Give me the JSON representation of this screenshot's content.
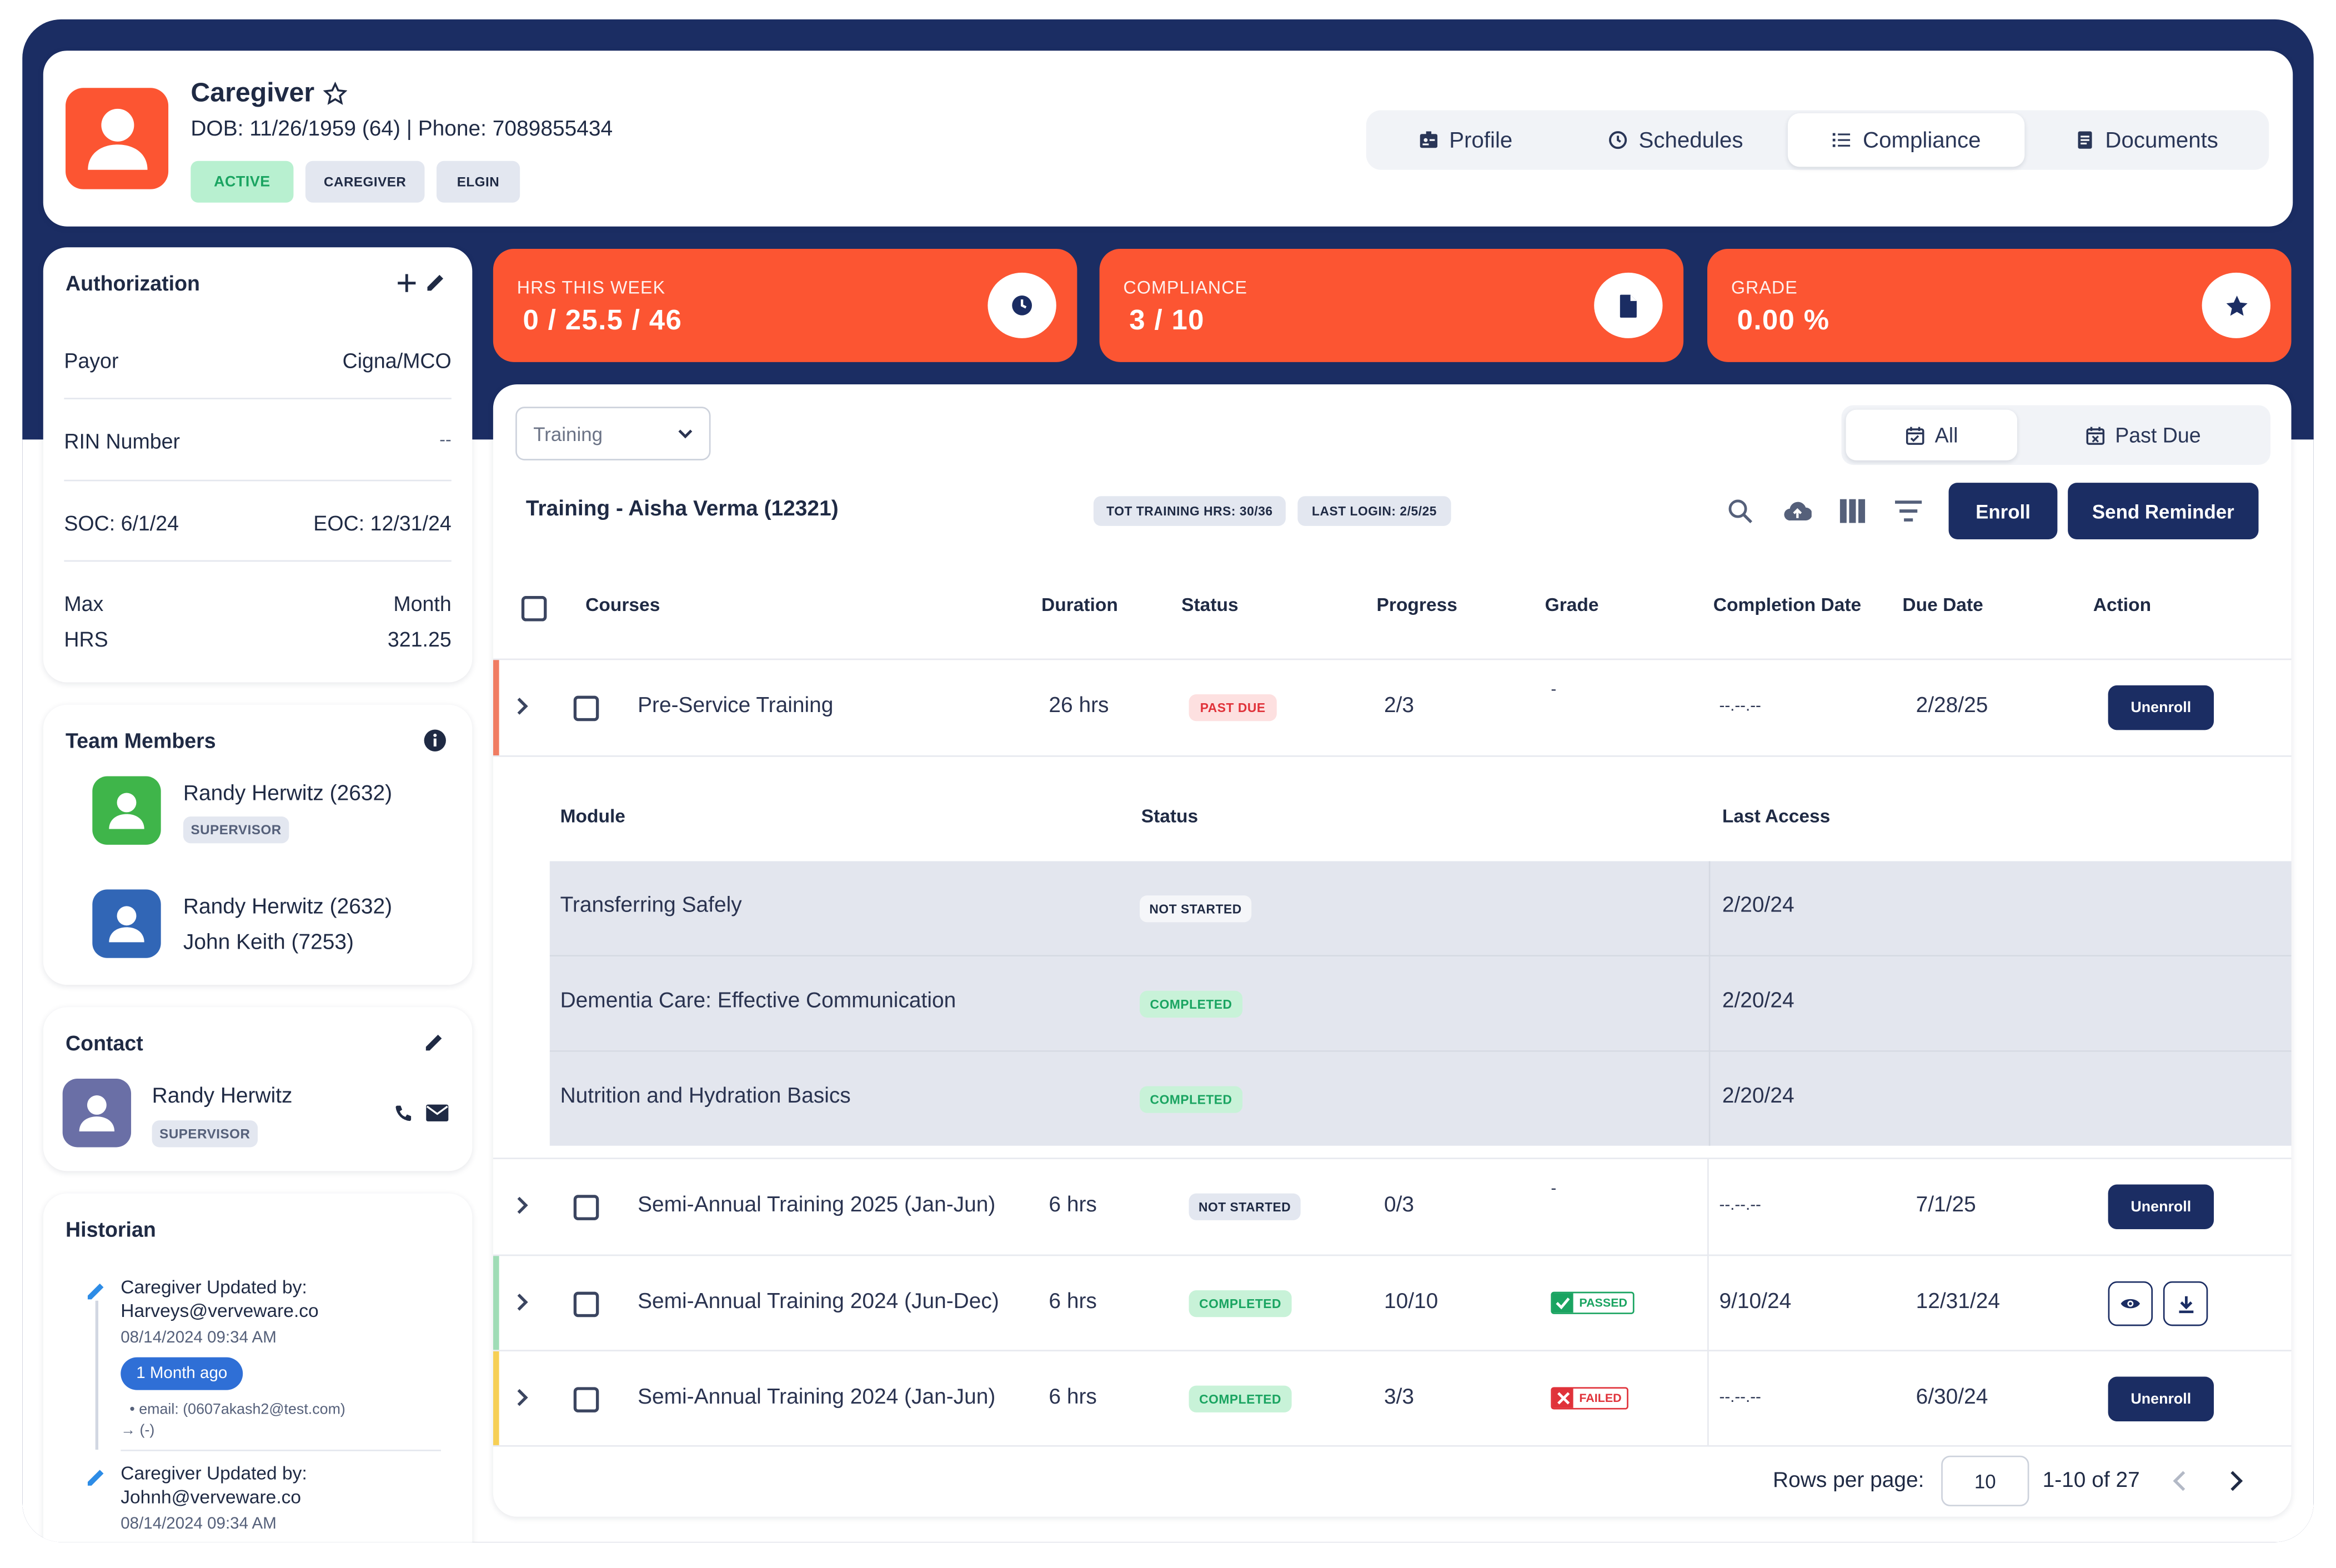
{
  "profile": {
    "name": "Caregiver",
    "info": "DOB: 11/26/1959 (64) | Phone: 7089855434",
    "badges": [
      "ACTIVE",
      "CAREGIVER",
      "ELGIN"
    ]
  },
  "tabs": [
    {
      "label": "Profile",
      "icon": "id-card-icon",
      "selected": false
    },
    {
      "label": "Schedules",
      "icon": "clock-icon",
      "selected": false
    },
    {
      "label": "Compliance",
      "icon": "list-icon",
      "selected": true
    },
    {
      "label": "Documents",
      "icon": "document-icon",
      "selected": false
    }
  ],
  "stats": [
    {
      "label": "HRS THIS WEEK",
      "value": "0 / 25.5 / 46",
      "icon": "clock-icon"
    },
    {
      "label": "COMPLIANCE",
      "value": "3 / 10",
      "icon": "file-icon"
    },
    {
      "label": "GRADE",
      "value": "0.00 %",
      "icon": "star-icon"
    }
  ],
  "authorization": {
    "title": "Authorization",
    "payor_label": "Payor",
    "payor_value": "Cigna/MCO",
    "rin_label": "RIN Number",
    "rin_value": "--",
    "soc": "SOC: 6/1/24",
    "eoc": "EOC: 12/31/24",
    "max_label_1": "Max",
    "max_label_2": "HRS",
    "month_label": "Month",
    "month_value": "321.25"
  },
  "team": {
    "title": "Team Members",
    "members": [
      {
        "name": "Randy Herwitz (2632)",
        "role": "SUPERVISOR",
        "color": "#3fb54a"
      },
      {
        "name": "Randy Herwitz (2632)",
        "second": "John Keith (7253)",
        "color": "#3166b6"
      }
    ]
  },
  "contact": {
    "title": "Contact",
    "name": "Randy Herwitz",
    "role": "SUPERVISOR",
    "color": "#6a6fa6"
  },
  "historian": {
    "title": "Historian",
    "items": [
      {
        "line1": "Caregiver Updated by:",
        "line2": "Harveys@verveware.co",
        "time": "08/14/2024 09:34 AM",
        "ago": "1 Month ago",
        "detail1": "email: (0607akash2@test.com)",
        "detail2": "→ (-)"
      },
      {
        "line1": "Caregiver Updated by:",
        "line2": "Johnh@verveware.co",
        "time": "08/14/2024 09:34 AM"
      }
    ]
  },
  "training": {
    "filter_value": "Training",
    "title": "Training - Aisha Verma (12321)",
    "chip_hours": "TOT TRAINING HRS: 30/36",
    "chip_login": "LAST LOGIN: 2/5/25",
    "seg_all": "All",
    "seg_past_due": "Past Due",
    "enroll": "Enroll",
    "send_reminder": "Send Reminder",
    "columns": [
      "Courses",
      "Duration",
      "Status",
      "Progress",
      "Grade",
      "Completion Date",
      "Due Date",
      "Action"
    ],
    "rows": [
      {
        "course": "Pre-Service Training",
        "duration": "26 hrs",
        "status": "PAST DUE",
        "progress": "2/3",
        "grade": "-",
        "completion": "--.--.--",
        "due": "2/28/25",
        "action": "Unenroll"
      },
      {
        "course": "Semi-Annual Training 2025 (Jan-Jun)",
        "duration": "6 hrs",
        "status": "NOT STARTED",
        "progress": "0/3",
        "grade": "-",
        "completion": "--.--.--",
        "due": "7/1/25",
        "action": "Unenroll"
      },
      {
        "course": "Semi-Annual Training 2024 (Jun-Dec)",
        "duration": "6 hrs",
        "status": "COMPLETED",
        "progress": "10/10",
        "grade": "PASSED",
        "completion": "9/10/24",
        "due": "12/31/24"
      },
      {
        "course": "Semi-Annual Training 2024 (Jan-Jun)",
        "duration": "6 hrs",
        "status": "COMPLETED",
        "progress": "3/3",
        "grade": "FAILED",
        "completion": "--.--.--",
        "due": "6/30/24",
        "action": "Unenroll"
      }
    ],
    "module_columns": [
      "Module",
      "Status",
      "Last Access"
    ],
    "modules": [
      {
        "name": "Transferring Safely",
        "status": "NOT STARTED",
        "last": "2/20/24"
      },
      {
        "name": "Dementia Care: Effective Communication",
        "status": "COMPLETED",
        "last": "2/20/24"
      },
      {
        "name": "Nutrition and Hydration Basics",
        "status": "COMPLETED",
        "last": "2/20/24"
      }
    ],
    "pagination": {
      "rows_label": "Rows per page:",
      "rows_value": "10",
      "range": "1-10 of 27"
    }
  },
  "colors": {
    "navy": "#1b2d63",
    "accent": "#fc5532",
    "success": "#1aa461",
    "danger": "#e0323a"
  }
}
